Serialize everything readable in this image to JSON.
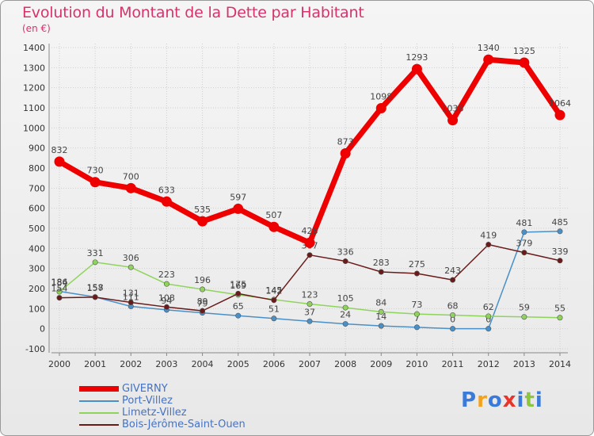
{
  "title": "Evolution du Montant de la Dette par Habitant",
  "unit": "(en €)",
  "logo": {
    "letters": [
      "P",
      "r",
      "o",
      "x",
      "i",
      "t",
      "i"
    ],
    "colors": [
      "#3a7ad8",
      "#f2a31b",
      "#3a7ad8",
      "#e8352c",
      "#3a7ad8",
      "#8cc63f",
      "#3a7ad8"
    ]
  },
  "chart_data": {
    "type": "line",
    "title": "Evolution du Montant de la Dette par Habitant",
    "ylabel": "(en €)",
    "xlabel": "",
    "x": [
      "2000",
      "2001",
      "2002",
      "2003",
      "2004",
      "2005",
      "2006",
      "2007",
      "2008",
      "2009",
      "2010",
      "2011",
      "2012",
      "2013",
      "2014"
    ],
    "ylim": [
      -100,
      1400
    ],
    "yticks": [
      "-100",
      "0",
      "100",
      "200",
      "300",
      "400",
      "500",
      "600",
      "700",
      "800",
      "900",
      "1000",
      "1100",
      "1200",
      "1300",
      "1400"
    ],
    "grid": true,
    "legend_position": "bottom-left",
    "series": [
      {
        "name": "GIVERNY",
        "color": "#ee0000",
        "values": [
          832,
          730,
          700,
          633,
          535,
          597,
          507,
          428,
          873,
          1098,
          1293,
          1038,
          1340,
          1325,
          1064
        ]
      },
      {
        "name": "Port-Villez",
        "color": "#4a90c8",
        "values": [
          186,
          158,
          111,
          94,
          79,
          65,
          51,
          37,
          24,
          14,
          7,
          0,
          0,
          481,
          485
        ]
      },
      {
        "name": "Limetz-Villez",
        "color": "#8fd45a",
        "values": [
          184,
          331,
          306,
          223,
          196,
          169,
          145,
          123,
          105,
          84,
          73,
          68,
          62,
          59,
          55
        ]
      },
      {
        "name": "Bois-Jérôme-Saint-Ouen",
        "color": "#6b1a1a",
        "values": [
          154,
          157,
          131,
          108,
          89,
          175,
          142,
          367,
          336,
          283,
          275,
          243,
          419,
          379,
          339
        ]
      }
    ]
  }
}
